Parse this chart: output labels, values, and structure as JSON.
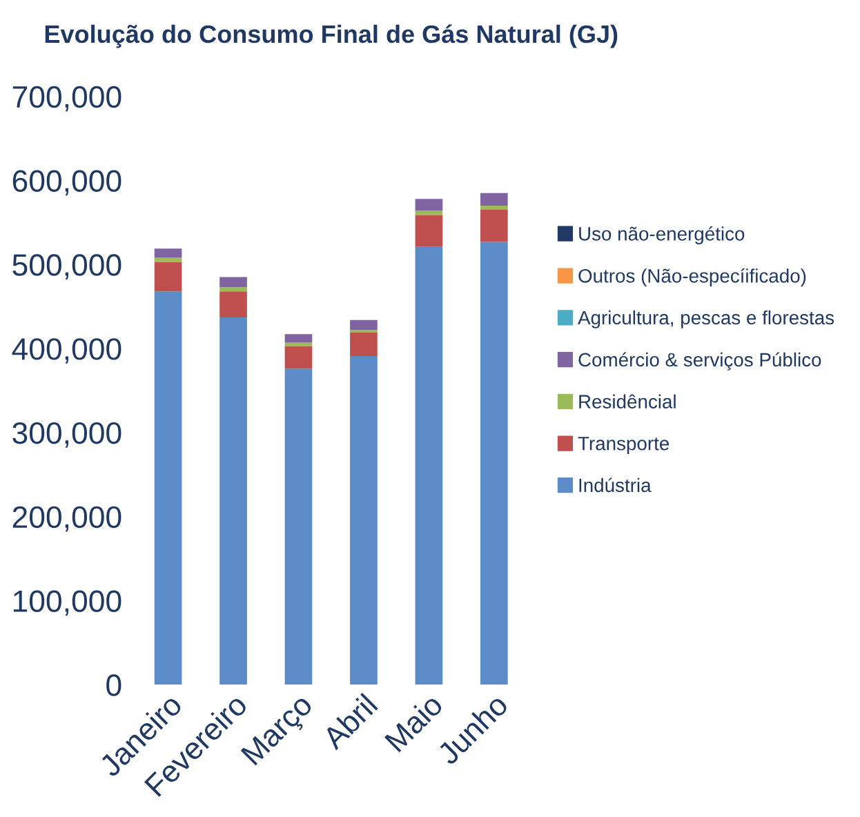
{
  "chart_data": {
    "type": "bar",
    "title": "Evolução do Consumo Final de Gás Natural (GJ)",
    "categories": [
      "Janeiro",
      "Fevereiro",
      "Março",
      "Abril",
      "Maio",
      "Junho"
    ],
    "stacked": true,
    "legend": "right",
    "grid": false,
    "ylim": [
      0,
      700000
    ],
    "yticks": [
      {
        "value": 0,
        "label": "0"
      },
      {
        "value": 100000,
        "label": "100,000"
      },
      {
        "value": 200000,
        "label": "200,000"
      },
      {
        "value": 300000,
        "label": "300,000"
      },
      {
        "value": 400000,
        "label": "400,000"
      },
      {
        "value": 500000,
        "label": "500,000"
      },
      {
        "value": 600000,
        "label": "600,000"
      },
      {
        "value": 700000,
        "label": "700,000"
      }
    ],
    "series": [
      {
        "name": "Indústria",
        "color": "#5b8cc8",
        "values": [
          468000,
          437000,
          376000,
          391000,
          521000,
          527000
        ]
      },
      {
        "name": "Transporte",
        "color": "#c0504d",
        "values": [
          35000,
          31000,
          27000,
          28000,
          38000,
          38000
        ]
      },
      {
        "name": "Residêncial",
        "color": "#9bbb59",
        "values": [
          5000,
          5000,
          4000,
          3000,
          5000,
          5000
        ]
      },
      {
        "name": "Comércio & serviços Público",
        "color": "#8064a2",
        "values": [
          11000,
          12000,
          10000,
          12000,
          14000,
          15000
        ]
      },
      {
        "name": "Agricultura, pescas e florestas",
        "color": "#4bacc6",
        "values": [
          0,
          0,
          0,
          0,
          0,
          0
        ]
      },
      {
        "name": "Outros (Não-especíificado)",
        "color": "#f79646",
        "values": [
          0,
          0,
          0,
          0,
          0,
          0
        ]
      },
      {
        "name": "Uso não-energético",
        "color": "#1f3864",
        "values": [
          0,
          0,
          0,
          0,
          0,
          0
        ]
      }
    ]
  }
}
